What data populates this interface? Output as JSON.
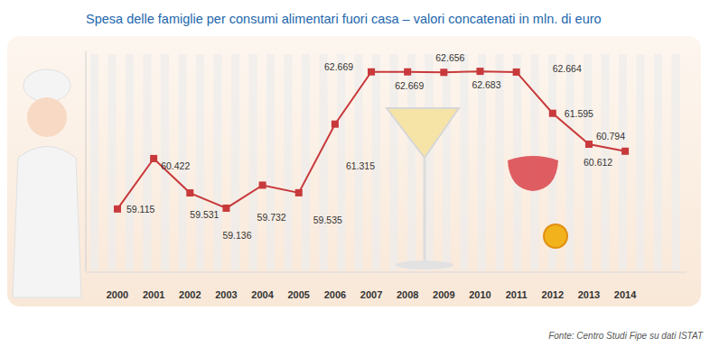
{
  "chart_data": {
    "type": "line",
    "title": "Spesa delle famiglie per consumi alimentari fuori casa – valori concatenati in mln. di euro",
    "source": "Fonte: Centro Studi Fipe su dati ISTAT",
    "categories": [
      "2000",
      "2001",
      "2002",
      "2003",
      "2004",
      "2005",
      "2006",
      "2007",
      "2008",
      "2009",
      "2010",
      "2011",
      "2012",
      "2013",
      "2014"
    ],
    "values": [
      59115,
      60422,
      59531,
      59136,
      59732,
      59535,
      61315,
      62669,
      62669,
      62656,
      62683,
      62664,
      61595,
      60794,
      60612
    ],
    "value_labels": [
      "59.115",
      "60.422",
      "59.531",
      "59.136",
      "59.732",
      "59.535",
      "61.315",
      "62.669",
      "62.669",
      "62.656",
      "62.683",
      "62.664",
      "61.595",
      "60.794",
      "60.612"
    ],
    "color": "#c8393b",
    "marker": "square",
    "data_labels": true,
    "tick_labels": "x",
    "grid": false,
    "ylim": [
      57500,
      63200
    ]
  }
}
